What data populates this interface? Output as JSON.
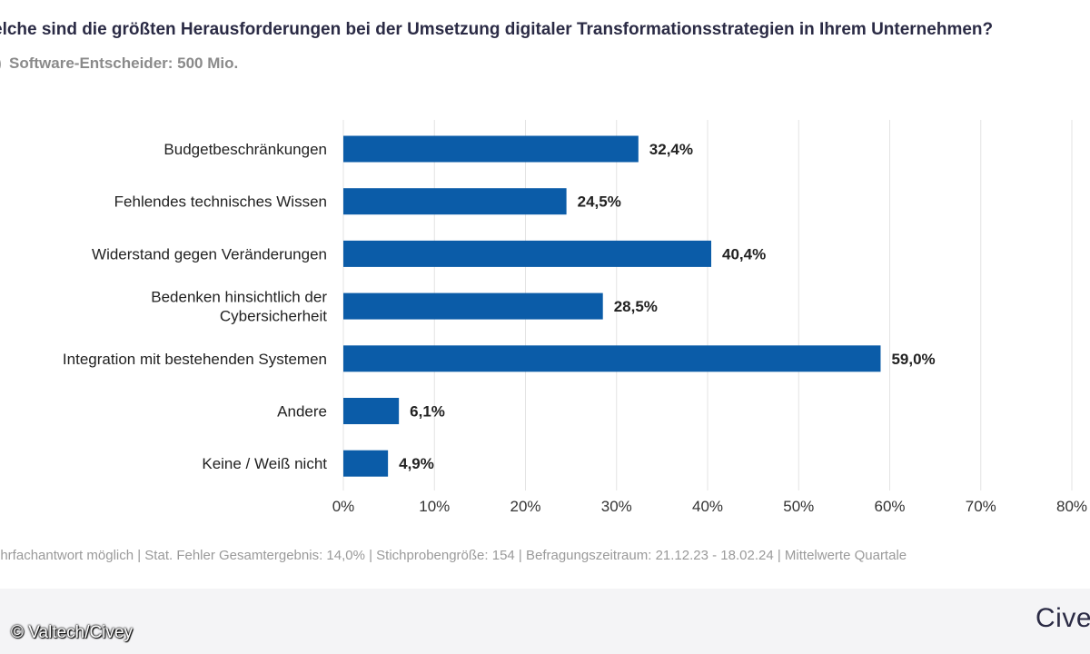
{
  "header": {
    "title": "elche sind die größten Herausforderungen bei der Umsetzung digitaler Transformationsstrategien in Ihrem Unternehmen?",
    "subtitle": "Software-Entscheider: 500 Mio.",
    "subtitle_marker": ")"
  },
  "chart_data": {
    "type": "bar",
    "orientation": "horizontal",
    "categories": [
      [
        "Budgetbeschränkungen"
      ],
      [
        "Fehlendes technisches Wissen"
      ],
      [
        "Widerstand gegen Veränderungen"
      ],
      [
        "Bedenken hinsichtlich der",
        "Cybersicherheit"
      ],
      [
        "Integration mit bestehenden Systemen"
      ],
      [
        "Andere"
      ],
      [
        "Keine / Weiß nicht"
      ]
    ],
    "values": [
      32.4,
      24.5,
      40.4,
      28.5,
      59.0,
      6.1,
      4.9
    ],
    "value_labels": [
      "32,4%",
      "24,5%",
      "40,4%",
      "28,5%",
      "59,0%",
      "6,1%",
      "4,9%"
    ],
    "xlim": [
      0,
      80
    ],
    "xticks": [
      0,
      10,
      20,
      30,
      40,
      50,
      60,
      70,
      80
    ],
    "xtick_labels": [
      "0%",
      "10%",
      "20%",
      "30%",
      "40%",
      "50%",
      "60%",
      "70%",
      "80%"
    ],
    "grid": true,
    "bar_color": "#0b5ca8"
  },
  "footnote": "ehrfachantwort möglich | Stat. Fehler Gesamtergebnis: 14,0% | Stichprobengröße: 154 | Befragungszeitraum: 21.12.23 - 18.02.24 | Mittelwerte Quartale",
  "footer": {
    "copyright": "© Valtech/Civey",
    "logo": "Cive"
  }
}
